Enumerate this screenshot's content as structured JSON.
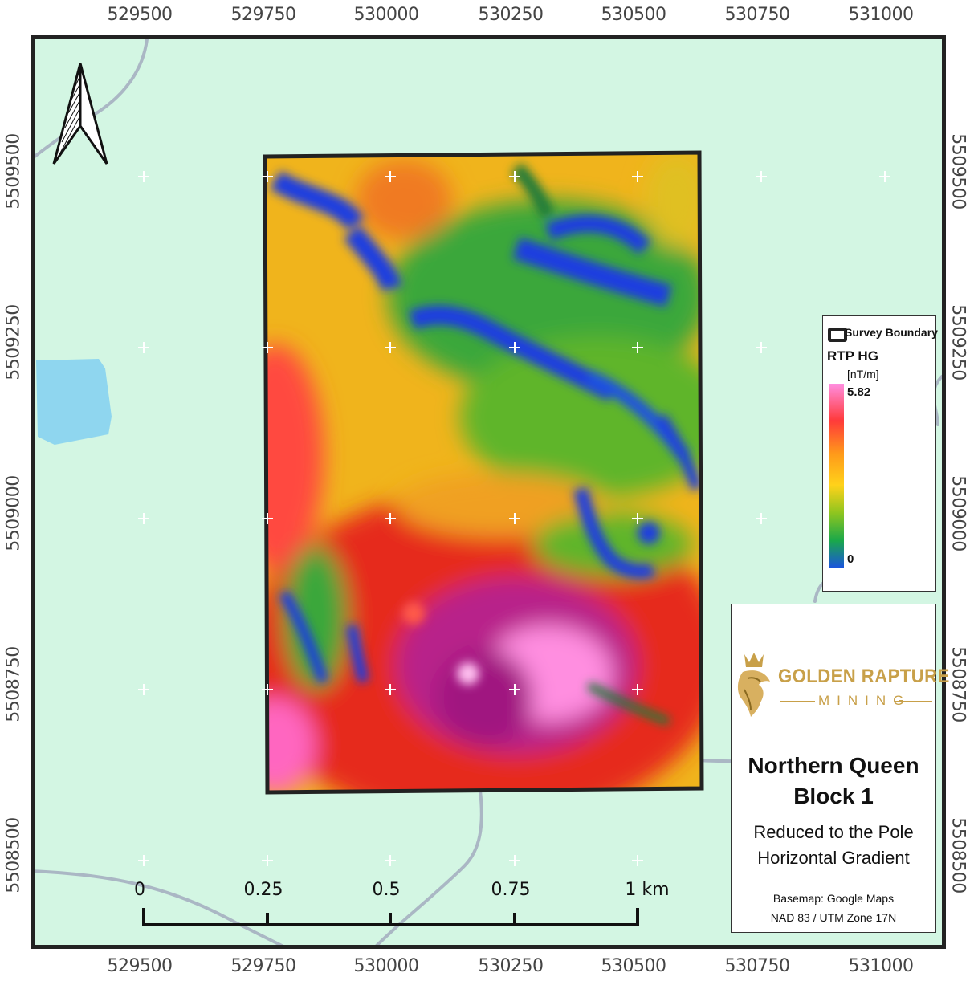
{
  "map": {
    "easting_labels": [
      "529500",
      "529750",
      "530000",
      "530250",
      "530500",
      "530750",
      "531000"
    ],
    "northing_labels": [
      "5509500",
      "5509250",
      "5509000",
      "5508750",
      "5508500"
    ],
    "north_arrow_icon": "north-arrow-icon",
    "grid_marker_icon": "plus-icon"
  },
  "legend": {
    "boundary_label": "Survey Boundary",
    "layer_title": "RTP HG",
    "units": "[nT/m]",
    "max_value": "5.82",
    "min_value": "0",
    "colors": [
      "#ff8ee0",
      "#ff3a3a",
      "#ff9a1a",
      "#ffd21a",
      "#8ec51f",
      "#1aa84a",
      "#1a52e0"
    ]
  },
  "scale_bar": {
    "labels": [
      "0",
      "0.25",
      "0.5",
      "0.75"
    ],
    "end_label": "1 km"
  },
  "title_block": {
    "logo_text": "GOLDEN RAPTURE",
    "logo_subtext": "MINING",
    "title_line1": "Northern Queen",
    "title_line2": "Block 1",
    "subtitle_line1": "Reduced to the Pole",
    "subtitle_line2": "Horizontal Gradient",
    "basemap_credit": "Basemap: Google Maps",
    "projection": "NAD 83 / UTM Zone 17N"
  },
  "colors": {
    "background_land": "#d3f6e3",
    "water": "#8fd6ef",
    "road": "#aab7c4",
    "frame": "#222222",
    "gold": "#c8a049"
  }
}
